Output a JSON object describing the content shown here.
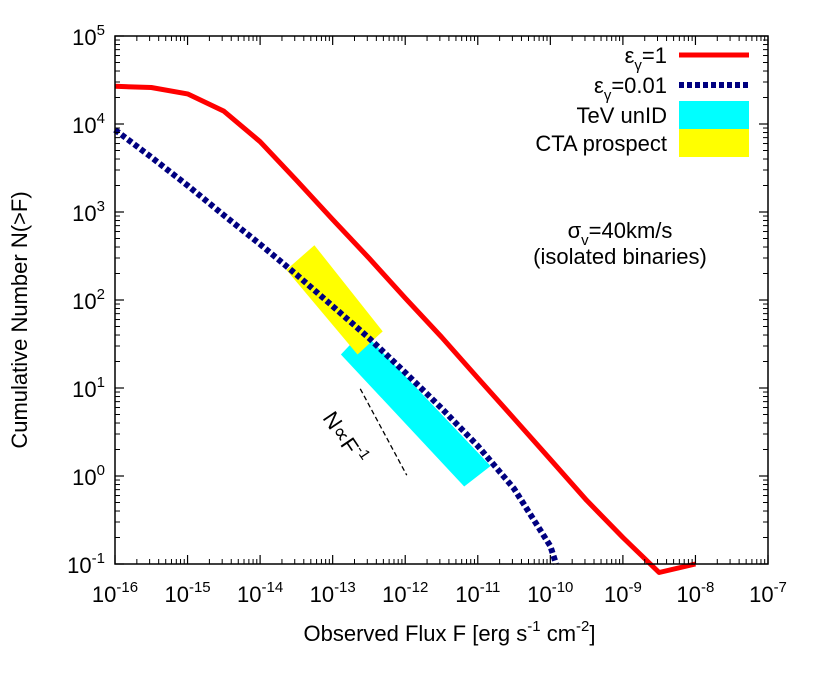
{
  "chart_data": {
    "type": "line",
    "xlabel": {
      "text": "Observed Flux   F [erg s",
      "sup1": "-1",
      "mid": " cm",
      "sup2": "-2",
      "end": "]"
    },
    "ylabel": "Cumulative Number   N(>F)",
    "x_scale": "log",
    "y_scale": "log",
    "xlim": [
      1e-16,
      1e-07
    ],
    "ylim": [
      0.1,
      100000
    ],
    "x_ticks": [
      {
        "base": "10",
        "exp": "-16",
        "value": 1e-16
      },
      {
        "base": "10",
        "exp": "-15",
        "value": 1e-15
      },
      {
        "base": "10",
        "exp": "-14",
        "value": 1e-14
      },
      {
        "base": "10",
        "exp": "-13",
        "value": 1e-13
      },
      {
        "base": "10",
        "exp": "-12",
        "value": 1e-12
      },
      {
        "base": "10",
        "exp": "-11",
        "value": 1e-11
      },
      {
        "base": "10",
        "exp": "-10",
        "value": 1e-10
      },
      {
        "base": "10",
        "exp": "-9",
        "value": 1e-09
      },
      {
        "base": "10",
        "exp": "-8",
        "value": 1e-08
      },
      {
        "base": "10",
        "exp": "-7",
        "value": 1e-07
      }
    ],
    "y_ticks": [
      {
        "base": "10",
        "exp": "-1",
        "value": 0.1
      },
      {
        "base": "10",
        "exp": "0",
        "value": 1
      },
      {
        "base": "10",
        "exp": "1",
        "value": 10
      },
      {
        "base": "10",
        "exp": "2",
        "value": 100
      },
      {
        "base": "10",
        "exp": "3",
        "value": 1000
      },
      {
        "base": "10",
        "exp": "4",
        "value": 10000
      },
      {
        "base": "10",
        "exp": "5",
        "value": 100000
      }
    ],
    "series": [
      {
        "name": "ε_γ=1",
        "legend": {
          "base": "ε",
          "sub": "γ",
          "rest": "=1"
        },
        "color": "#ff0000",
        "style": "solid",
        "x": [
          1e-16,
          3.16e-16,
          1e-15,
          3.16e-15,
          1e-14,
          3.16e-14,
          1e-13,
          3.16e-13,
          1e-12,
          3.16e-12,
          1e-11,
          3.16e-11,
          1e-10,
          3.16e-10,
          1e-09,
          3.16e-09,
          1e-08
        ],
        "y": [
          26800,
          26000,
          22000,
          14000,
          6300,
          2300,
          820,
          300,
          105,
          38,
          13,
          4.5,
          1.55,
          0.53,
          0.2,
          0.08,
          0.1
        ]
      },
      {
        "name": "ε_γ=0.01",
        "legend": {
          "base": "ε",
          "sub": "γ",
          "rest": "=0.01"
        },
        "color": "#000080",
        "style": "dashed",
        "x": [
          1e-16,
          3.16e-16,
          1e-15,
          3.16e-15,
          1e-14,
          3.16e-14,
          1e-13,
          3.16e-13,
          1e-12,
          3.16e-12,
          1e-11,
          3.16e-11,
          1e-10,
          1.2e-10
        ],
        "y": [
          8600,
          4200,
          2000,
          920,
          430,
          195,
          85,
          37,
          15,
          5.9,
          2.2,
          0.72,
          0.16,
          0.1
        ]
      }
    ],
    "bands": [
      {
        "name": "TeV unID",
        "color": "#00ffff",
        "corners": [
          [
            2.6e-13,
            44
          ],
          [
            1.5e-11,
            1.3
          ],
          [
            6.5e-12,
            0.76
          ],
          [
            1.3e-13,
            24
          ]
        ]
      },
      {
        "name": "CTA prospect",
        "color": "#ffff00",
        "corners": [
          [
            5.6e-14,
            420
          ],
          [
            4.9e-13,
            44
          ],
          [
            2.2e-13,
            24
          ],
          [
            2.3e-14,
            220
          ]
        ]
      }
    ],
    "reference_line": {
      "label_base": "N∝F",
      "label_exp": "-1",
      "x": [
        2.4e-13,
        1.05e-12
      ],
      "y": [
        9.8,
        1.02
      ]
    },
    "annotations": [
      {
        "line1": {
          "base": "σ",
          "sub": "v",
          "rest": "=40km/s"
        },
        "line2": "(isolated binaries)"
      }
    ],
    "legend_position": "top-right",
    "grid": false
  }
}
